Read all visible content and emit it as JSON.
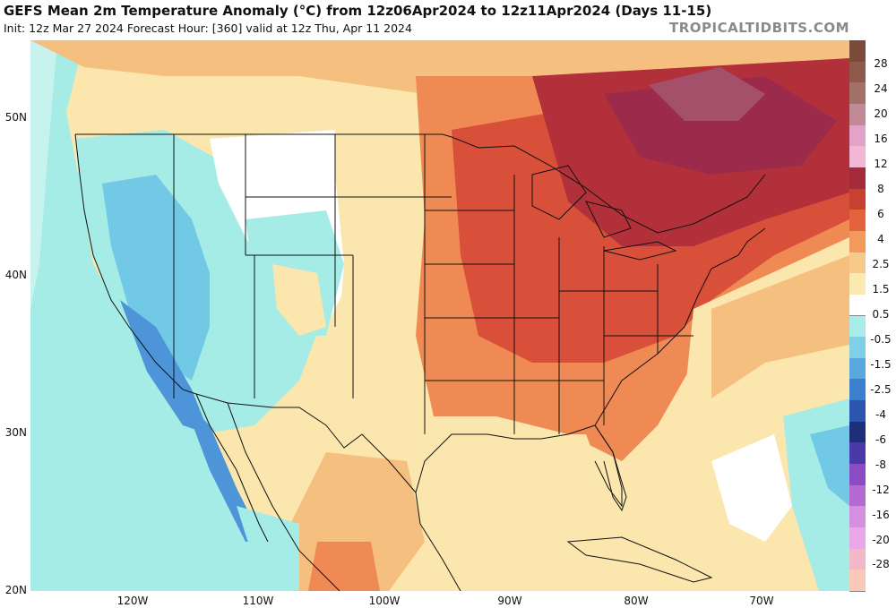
{
  "header": {
    "title": "GEFS Mean 2m Temperature Anomaly (°C) from 12z06Apr2024 to 12z11Apr2024 (Days 11-15)",
    "subtitle": "Init: 12z Mar 27 2024   Forecast Hour: [360]   valid at 12z Thu, Apr 11 2024",
    "credit": "TROPICALTIDBITS.COM"
  },
  "axes": {
    "latitude_labels": [
      "50N",
      "40N",
      "30N",
      "20N"
    ],
    "longitude_labels": [
      "120W",
      "110W",
      "100W",
      "90W",
      "80W",
      "70W"
    ]
  },
  "colorbar": {
    "labels": [
      "28",
      "24",
      "20",
      "16",
      "12",
      "8",
      "6",
      "4",
      "2.5",
      "1.5",
      "0.5",
      "-0.5",
      "-1.5",
      "-2.5",
      "-4",
      "-6",
      "-8",
      "-12",
      "-16",
      "-20",
      "-28"
    ],
    "colors": [
      "#7a4a3a",
      "#8e5a4c",
      "#a4706a",
      "#c08a96",
      "#e3a3c8",
      "#f3b7d6",
      "#a52a3a",
      "#c8402e",
      "#e4623c",
      "#f29a5c",
      "#f7c98a",
      "#fbeab0",
      "#ffffff",
      "#a9ede8",
      "#7fd0e6",
      "#5aa8e0",
      "#3c7fd0",
      "#2a56b0",
      "#1e2f7a",
      "#4a39a8",
      "#8a4cc4",
      "#b46ad0",
      "#d68ee0",
      "#e8a8e8",
      "#f2b8c8",
      "#f8c8b8"
    ]
  },
  "map": {
    "colors": {
      "ocean_neutral": "#ffffff",
      "warm_light": "#fbe6ae",
      "warm_mid": "#f5c07f",
      "warm_orange": "#ef8a55",
      "warm_red": "#d9503a",
      "warm_dark": "#b2303a",
      "warm_darkest": "#9c2a4a",
      "cool_light": "#a5ebe6",
      "cool_mid": "#72c9e6",
      "cool_dark": "#4d95d8",
      "border": "#111111"
    }
  }
}
